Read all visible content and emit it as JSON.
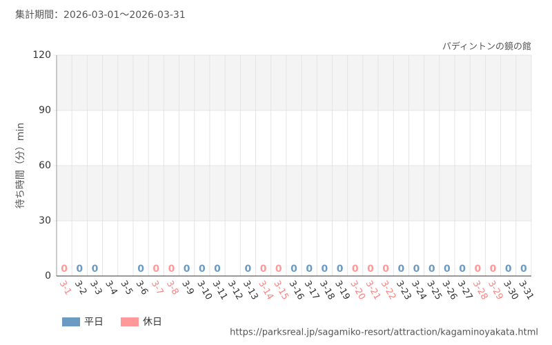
{
  "chart_data": {
    "type": "bar",
    "title": "集計期間：2026-03-01～2026-03-31",
    "subtitle": "パディントンの鏡の館",
    "y_label": "待ち時間（分）min",
    "source": "https://parksreal.jp/sagamiko-resort/attraction/kagaminoyakata.html",
    "categories": [
      "3-1",
      "3-2",
      "3-3",
      "3-4",
      "3-5",
      "3-6",
      "3-7",
      "3-8",
      "3-9",
      "3-10",
      "3-11",
      "3-12",
      "3-13",
      "3-14",
      "3-15",
      "3-16",
      "3-17",
      "3-18",
      "3-19",
      "3-20",
      "3-21",
      "3-22",
      "3-23",
      "3-24",
      "3-25",
      "3-26",
      "3-27",
      "3-28",
      "3-29",
      "3-30",
      "3-31"
    ],
    "series": [
      {
        "name": "平日",
        "color": "#6b9bc3",
        "values": [
          null,
          0,
          0,
          null,
          null,
          0,
          null,
          null,
          0,
          0,
          0,
          null,
          0,
          null,
          null,
          0,
          0,
          0,
          0,
          null,
          null,
          null,
          0,
          0,
          0,
          0,
          0,
          null,
          null,
          0,
          0
        ]
      },
      {
        "name": "休日",
        "color": "#ff9999",
        "values": [
          0,
          null,
          null,
          null,
          null,
          null,
          0,
          0,
          null,
          null,
          null,
          null,
          null,
          0,
          0,
          null,
          null,
          null,
          null,
          0,
          0,
          0,
          null,
          null,
          null,
          null,
          null,
          0,
          0,
          null,
          null
        ]
      }
    ],
    "ylim": [
      0,
      120
    ],
    "yticks": [
      0,
      30,
      60,
      90,
      120
    ],
    "grid": true
  }
}
